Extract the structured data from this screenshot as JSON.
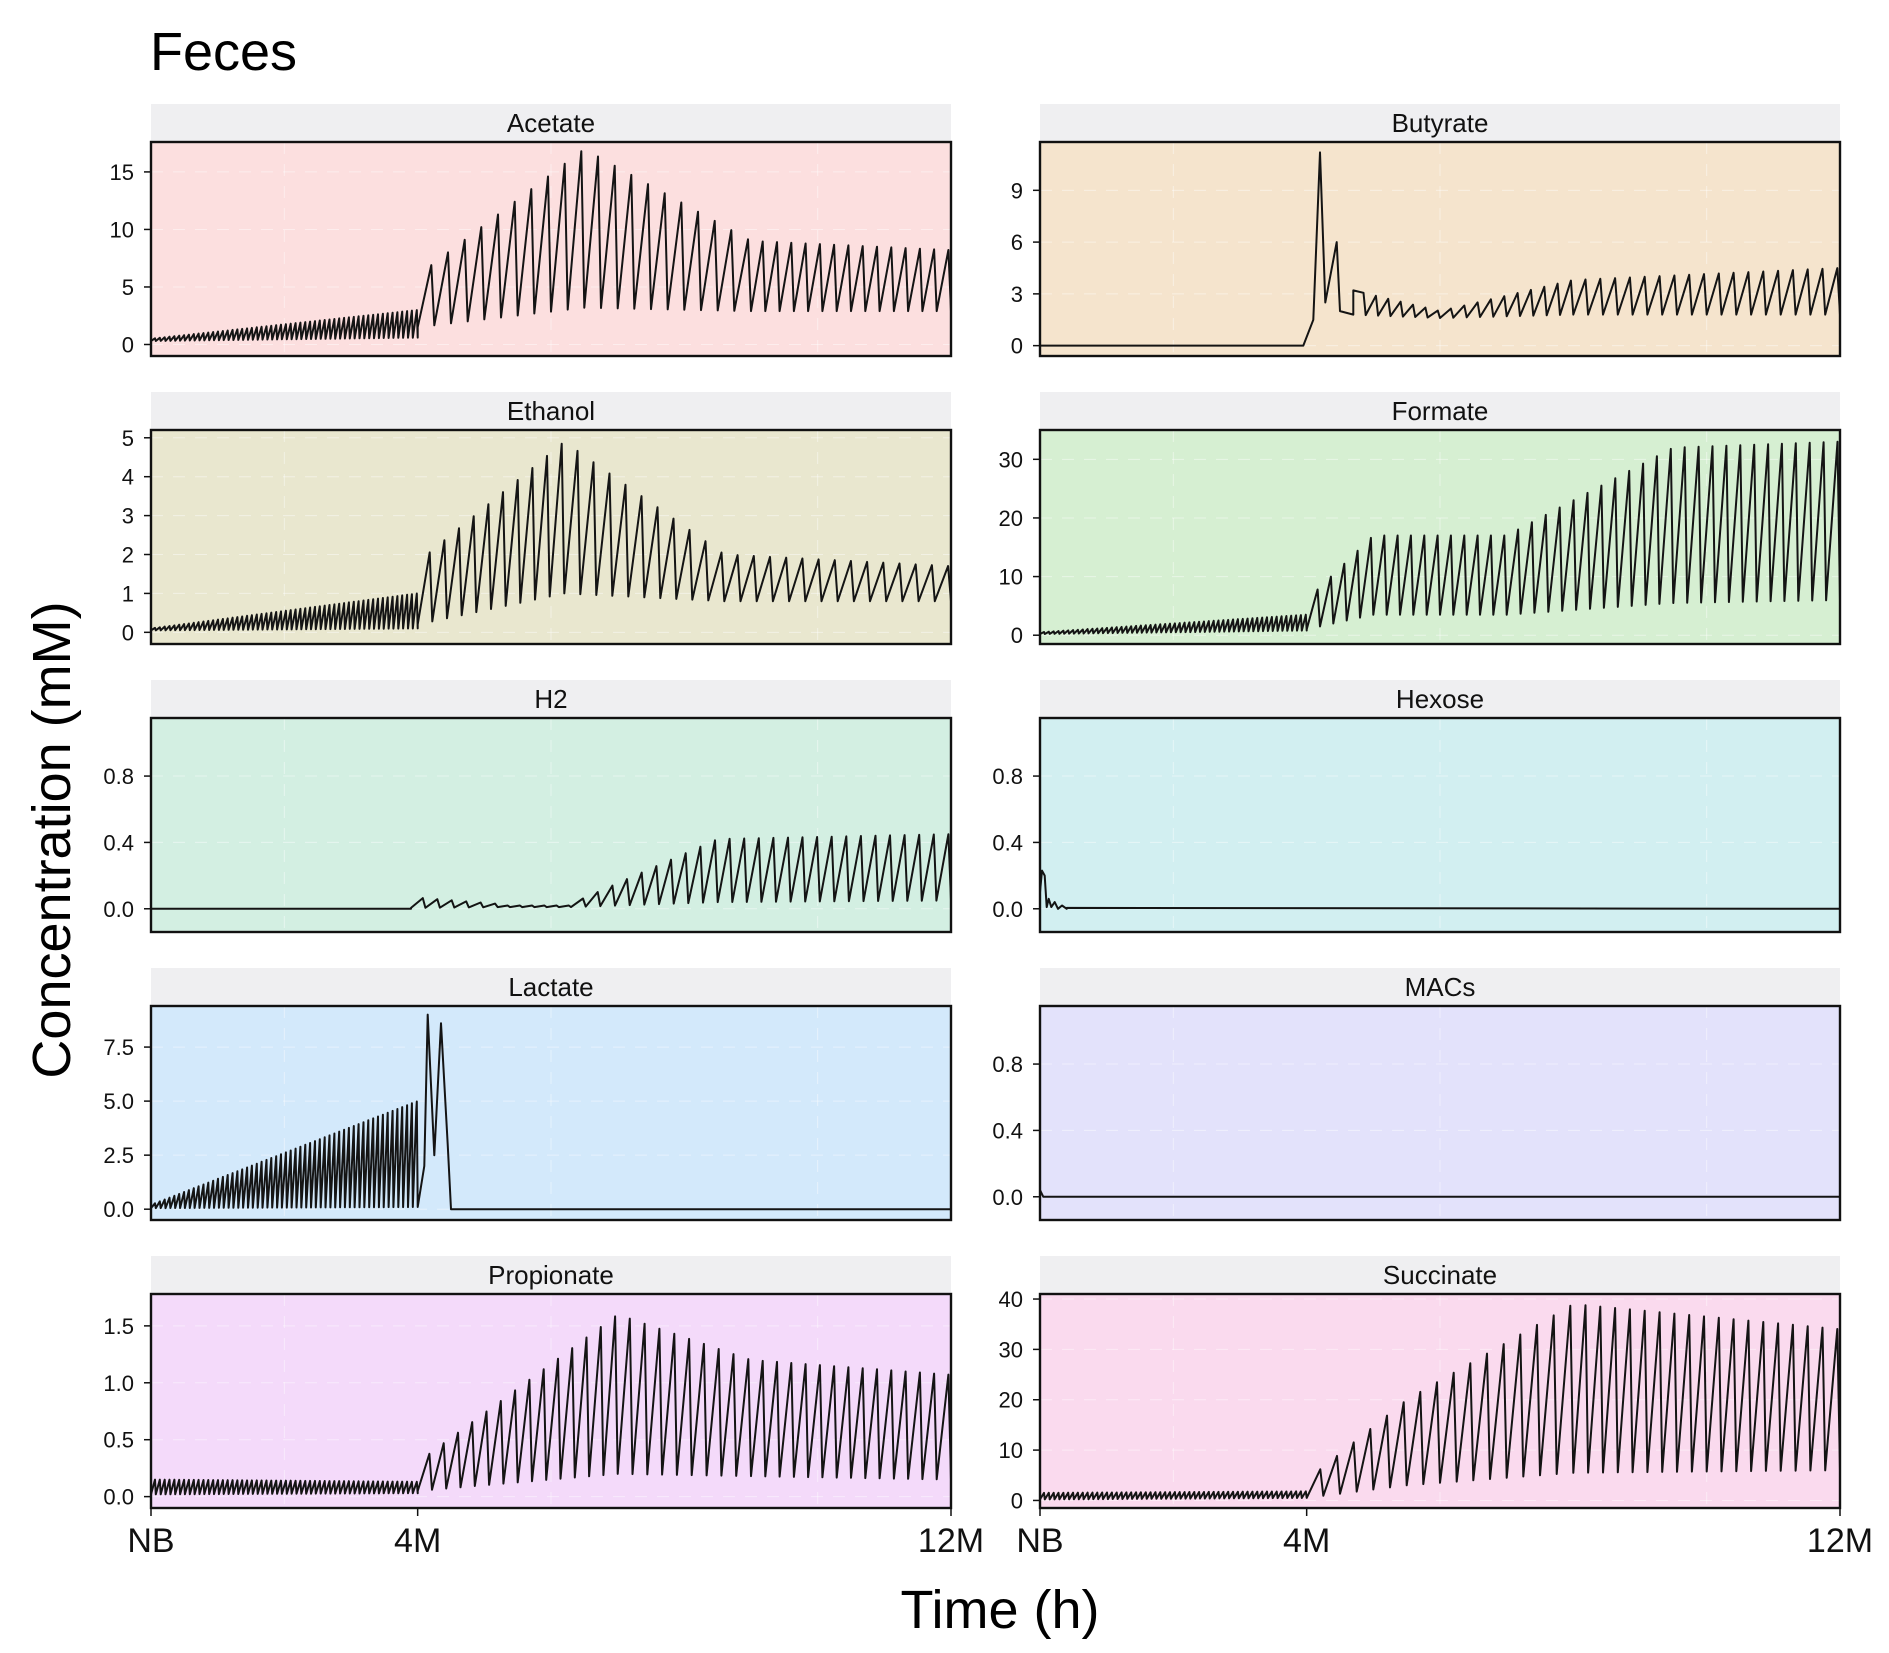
{
  "chart_data": {
    "type": "line",
    "title": "Feces",
    "xlabel": "Time (h)",
    "ylabel": "Concentration (mM)",
    "x_ticks": [
      "NB",
      "4M",
      "12M"
    ],
    "panels": [
      {
        "name": "Acetate",
        "bg": "#fcdfdf",
        "ylim": [
          -1,
          17.6
        ],
        "yticks": [
          "0",
          "5",
          "10",
          "15"
        ],
        "ytick_values": [
          0,
          5,
          10,
          15
        ],
        "segments": [
          {
            "x": [
              0,
              4
            ],
            "min": [
              0.3,
              0.6
            ],
            "max": [
              0.5,
              3.0
            ],
            "n": 55
          },
          {
            "x": [
              4,
              6.5
            ],
            "min": [
              1.5,
              3.2
            ],
            "max": [
              6,
              17
            ],
            "n": 10
          },
          {
            "x": [
              6.5,
              9
            ],
            "min": [
              3.2,
              2.9
            ],
            "max": [
              17,
              9
            ],
            "n": 10
          },
          {
            "x": [
              9,
              12
            ],
            "min": [
              2.9,
              2.9
            ],
            "max": [
              9,
              8.2
            ],
            "n": 14
          }
        ]
      },
      {
        "name": "Butyrate",
        "bg": "#f5e4cd",
        "ylim": [
          -0.6,
          11.8
        ],
        "yticks": [
          "0",
          "3",
          "6",
          "9"
        ],
        "ytick_values": [
          0,
          3,
          6,
          9
        ],
        "spikes": [
          {
            "x": 3.95,
            "y": 0
          },
          {
            "x": 4.1,
            "y": 1.5
          },
          {
            "x": 4.2,
            "y": 11.2
          },
          {
            "x": 4.28,
            "y": 2.5
          },
          {
            "x": 4.45,
            "y": 6.0
          },
          {
            "x": 4.5,
            "y": 2.0
          },
          {
            "x": 4.7,
            "y": 3.2
          }
        ],
        "segments": [
          {
            "x": [
              0,
              3.9
            ],
            "min": [
              0,
              0
            ],
            "max": [
              0,
              0
            ],
            "n": 1
          },
          {
            "x": [
              4.7,
              6
            ],
            "min": [
              1.8,
              1.6
            ],
            "max": [
              3.2,
              2.0
            ],
            "n": 7
          },
          {
            "x": [
              6,
              8
            ],
            "min": [
              1.6,
              1.8
            ],
            "max": [
              2.0,
              3.8
            ],
            "n": 10
          },
          {
            "x": [
              8,
              12
            ],
            "min": [
              1.8,
              1.8
            ],
            "max": [
              3.8,
              4.5
            ],
            "n": 18
          }
        ]
      },
      {
        "name": "Ethanol",
        "bg": "#e9e7cf",
        "ylim": [
          -0.3,
          5.2
        ],
        "yticks": [
          "0",
          "1",
          "2",
          "3",
          "4",
          "5"
        ],
        "ytick_values": [
          0,
          1,
          2,
          3,
          4,
          5
        ],
        "segments": [
          {
            "x": [
              0,
              4
            ],
            "min": [
              0.05,
              0.1
            ],
            "max": [
              0.1,
              1.0
            ],
            "n": 55
          },
          {
            "x": [
              4,
              6.2
            ],
            "min": [
              0.2,
              1.0
            ],
            "max": [
              1.8,
              4.9
            ],
            "n": 10
          },
          {
            "x": [
              6.2,
              8.6
            ],
            "min": [
              1.0,
              0.8
            ],
            "max": [
              4.9,
              2.0
            ],
            "n": 10
          },
          {
            "x": [
              8.6,
              12
            ],
            "min": [
              0.8,
              0.8
            ],
            "max": [
              2.0,
              1.7
            ],
            "n": 14
          }
        ]
      },
      {
        "name": "Formate",
        "bg": "#d6efd2",
        "ylim": [
          -1.5,
          35
        ],
        "yticks": [
          "0",
          "10",
          "20",
          "30"
        ],
        "ytick_values": [
          0,
          10,
          20,
          30
        ],
        "segments": [
          {
            "x": [
              0,
              4
            ],
            "min": [
              0.2,
              0.8
            ],
            "max": [
              0.5,
              3.5
            ],
            "n": 55
          },
          {
            "x": [
              4,
              5
            ],
            "min": [
              1,
              3.5
            ],
            "max": [
              6,
              17
            ],
            "n": 5
          },
          {
            "x": [
              5,
              7
            ],
            "min": [
              3.5,
              3.5
            ],
            "max": [
              17,
              17
            ],
            "n": 10
          },
          {
            "x": [
              7,
              9.5
            ],
            "min": [
              3.5,
              5.5
            ],
            "max": [
              17,
              32
            ],
            "n": 12
          },
          {
            "x": [
              9.5,
              12
            ],
            "min": [
              5.5,
              6
            ],
            "max": [
              32,
              33
            ],
            "n": 12
          }
        ]
      },
      {
        "name": "H2",
        "bg": "#d3efe2",
        "ylim": [
          -0.14,
          1.15
        ],
        "yticks": [
          "0.0",
          "0.4",
          "0.8"
        ],
        "ytick_values": [
          0,
          0.4,
          0.8
        ],
        "segments": [
          {
            "x": [
              0,
              3.9
            ],
            "min": [
              0,
              0
            ],
            "max": [
              0,
              0
            ],
            "n": 1
          },
          {
            "x": [
              3.9,
              5.2
            ],
            "min": [
              0.005,
              0.01
            ],
            "max": [
              0.07,
              0.03
            ],
            "n": 6
          },
          {
            "x": [
              5.2,
              6.3
            ],
            "min": [
              0.01,
              0.01
            ],
            "max": [
              0.02,
              0.02
            ],
            "n": 6
          },
          {
            "x": [
              6.3,
              8.5
            ],
            "min": [
              0.01,
              0.04
            ],
            "max": [
              0.03,
              0.42
            ],
            "n": 10
          },
          {
            "x": [
              8.5,
              12
            ],
            "min": [
              0.04,
              0.05
            ],
            "max": [
              0.42,
              0.45
            ],
            "n": 16
          }
        ]
      },
      {
        "name": "Hexose",
        "bg": "#d2eff1",
        "ylim": [
          -0.14,
          1.15
        ],
        "yticks": [
          "0.0",
          "0.4",
          "0.8"
        ],
        "ytick_values": [
          0,
          0.4,
          0.8
        ],
        "spikes": [
          {
            "x": 0,
            "y": 0.1
          },
          {
            "x": 0.03,
            "y": 0.23
          },
          {
            "x": 0.07,
            "y": 0.2
          },
          {
            "x": 0.1,
            "y": 0.01
          },
          {
            "x": 0.13,
            "y": 0.06
          },
          {
            "x": 0.17,
            "y": 0.01
          },
          {
            "x": 0.22,
            "y": 0.04
          },
          {
            "x": 0.27,
            "y": 0.0
          },
          {
            "x": 0.33,
            "y": 0.02
          },
          {
            "x": 0.4,
            "y": 0.005
          }
        ],
        "segments": [
          {
            "x": [
              0.4,
              12
            ],
            "min": [
              0,
              0
            ],
            "max": [
              0,
              0
            ],
            "n": 1
          }
        ]
      },
      {
        "name": "Lactate",
        "bg": "#d3e9fb",
        "ylim": [
          -0.5,
          9.4
        ],
        "yticks": [
          "0.0",
          "2.5",
          "5.0",
          "7.5"
        ],
        "ytick_values": [
          0,
          2.5,
          5,
          7.5
        ],
        "spikes": [
          {
            "x": 3.98,
            "y": 4.6
          },
          {
            "x": 4.1,
            "y": 2.0
          },
          {
            "x": 4.15,
            "y": 9.0
          },
          {
            "x": 4.25,
            "y": 2.5
          },
          {
            "x": 4.35,
            "y": 8.6
          },
          {
            "x": 4.45,
            "y": 3.0
          },
          {
            "x": 4.5,
            "y": 0.0
          }
        ],
        "segments": [
          {
            "x": [
              0,
              4
            ],
            "min": [
              0.05,
              0.1
            ],
            "max": [
              0.2,
              5.0
            ],
            "n": 55
          },
          {
            "x": [
              4.5,
              12
            ],
            "min": [
              0,
              0
            ],
            "max": [
              0,
              0
            ],
            "n": 1
          }
        ]
      },
      {
        "name": "MACs",
        "bg": "#e3e2fb",
        "ylim": [
          -0.14,
          1.15
        ],
        "yticks": [
          "0.0",
          "0.4",
          "0.8"
        ],
        "ytick_values": [
          0,
          0.4,
          0.8
        ],
        "spikes": [
          {
            "x": 0,
            "y": 0.04
          },
          {
            "x": 0.05,
            "y": 0.0
          }
        ],
        "segments": [
          {
            "x": [
              0.05,
              12
            ],
            "min": [
              0,
              0
            ],
            "max": [
              0,
              0
            ],
            "n": 1
          }
        ]
      },
      {
        "name": "Propionate",
        "bg": "#f4dafa",
        "ylim": [
          -0.1,
          1.78
        ],
        "yticks": [
          "0.0",
          "0.5",
          "1.0",
          "1.5"
        ],
        "ytick_values": [
          0,
          0.5,
          1,
          1.5
        ],
        "segments": [
          {
            "x": [
              0,
              4
            ],
            "min": [
              0.02,
              0.03
            ],
            "max": [
              0.15,
              0.13
            ],
            "n": 55
          },
          {
            "x": [
              4,
              7
            ],
            "min": [
              0.05,
              0.2
            ],
            "max": [
              0.3,
              1.6
            ],
            "n": 14
          },
          {
            "x": [
              7,
              9
            ],
            "min": [
              0.2,
              0.18
            ],
            "max": [
              1.6,
              1.2
            ],
            "n": 9
          },
          {
            "x": [
              9,
              12
            ],
            "min": [
              0.18,
              0.15
            ],
            "max": [
              1.2,
              1.07
            ],
            "n": 14
          }
        ]
      },
      {
        "name": "Succinate",
        "bg": "#fadaee",
        "ylim": [
          -1.5,
          41
        ],
        "yticks": [
          "0",
          "10",
          "20",
          "30",
          "40"
        ],
        "ytick_values": [
          0,
          10,
          20,
          30,
          40
        ],
        "segments": [
          {
            "x": [
              0,
              4
            ],
            "min": [
              0.2,
              0.5
            ],
            "max": [
              1.5,
              1.8
            ],
            "n": 55
          },
          {
            "x": [
              4,
              5.5
            ],
            "min": [
              0.5,
              3
            ],
            "max": [
              4,
              20
            ],
            "n": 6
          },
          {
            "x": [
              5.5,
              8
            ],
            "min": [
              3,
              5.5
            ],
            "max": [
              20,
              39
            ],
            "n": 10
          },
          {
            "x": [
              8,
              12
            ],
            "min": [
              5.5,
              6
            ],
            "max": [
              39,
              34
            ],
            "n": 18
          }
        ]
      }
    ]
  }
}
